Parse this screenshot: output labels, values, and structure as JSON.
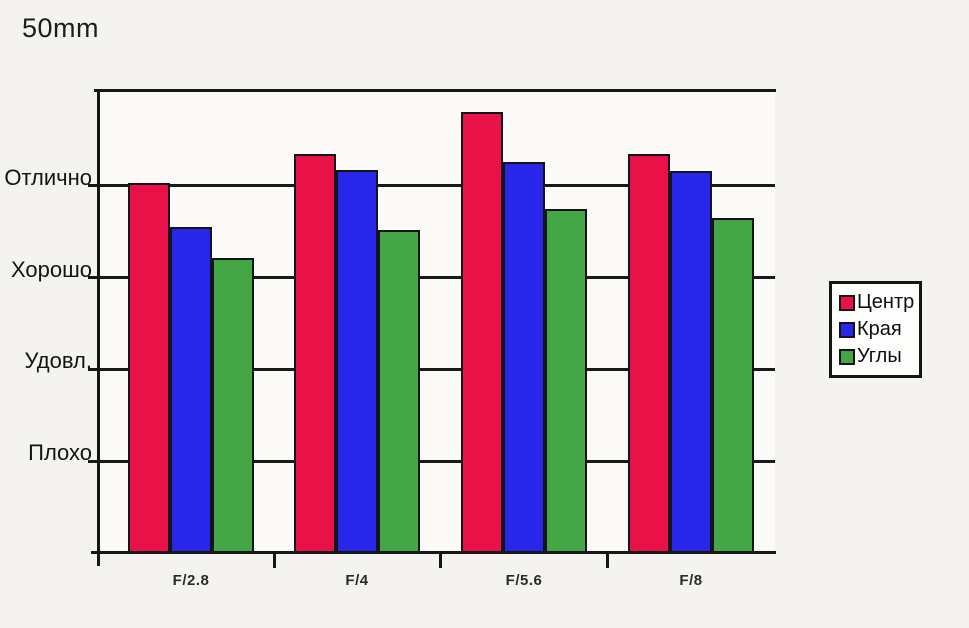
{
  "title": "50mm",
  "colors": {
    "series_center": "#e81148",
    "series_edges": "#2826e8",
    "series_corners": "#44a644",
    "axis": "#161616",
    "background": "#f5f3ef",
    "plot_background": "#fbfaf7"
  },
  "legend": {
    "items": [
      {
        "label": "Центр",
        "color": "#e81148"
      },
      {
        "label": "Края",
        "color": "#2826e8"
      },
      {
        "label": "Углы",
        "color": "#44a644"
      }
    ]
  },
  "chart_data": {
    "type": "bar",
    "title": "50mm",
    "categories": [
      "F/2.8",
      "F/4",
      "F/5.6",
      "F/8"
    ],
    "series": [
      {
        "name": "Центр",
        "color": "#e81148",
        "values": [
          4.03,
          4.35,
          4.8,
          4.35
        ]
      },
      {
        "name": "Края",
        "color": "#2826e8",
        "values": [
          3.55,
          4.17,
          4.26,
          4.16
        ]
      },
      {
        "name": "Углы",
        "color": "#44a644",
        "values": [
          3.21,
          3.52,
          3.75,
          3.65
        ]
      }
    ],
    "xlabel": "",
    "ylabel": "",
    "y_tick_labels": [
      {
        "label": "Отлично",
        "value": 4
      },
      {
        "label": "Хорошо",
        "value": 3
      },
      {
        "label": "Удовл.",
        "value": 2
      },
      {
        "label": "Плохо",
        "value": 1
      }
    ],
    "ylim": [
      0,
      5.04
    ],
    "grid": true,
    "legend_position": "right",
    "x_tick_style": "between-groups"
  }
}
